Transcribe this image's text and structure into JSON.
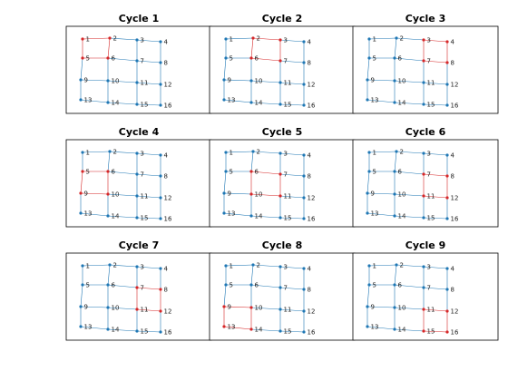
{
  "figure": {
    "node_labels": [
      "1",
      "2",
      "3",
      "4",
      "5",
      "6",
      "7",
      "8",
      "9",
      "10",
      "11",
      "12",
      "13",
      "14",
      "15",
      "16"
    ],
    "edges": [
      [
        1,
        2
      ],
      [
        2,
        3
      ],
      [
        3,
        4
      ],
      [
        5,
        6
      ],
      [
        6,
        7
      ],
      [
        7,
        8
      ],
      [
        9,
        10
      ],
      [
        10,
        11
      ],
      [
        11,
        12
      ],
      [
        13,
        14
      ],
      [
        14,
        15
      ],
      [
        15,
        16
      ],
      [
        1,
        5
      ],
      [
        5,
        9
      ],
      [
        9,
        13
      ],
      [
        2,
        6
      ],
      [
        6,
        10
      ],
      [
        10,
        14
      ],
      [
        3,
        7
      ],
      [
        7,
        11
      ],
      [
        11,
        15
      ],
      [
        4,
        8
      ],
      [
        8,
        12
      ],
      [
        12,
        16
      ]
    ],
    "colors": {
      "default": "#1f77b4",
      "highlight": "#d62728",
      "frame": "#000000"
    },
    "panels": [
      {
        "title": "Cycle 1",
        "cycle": [
          1,
          2,
          6,
          5
        ]
      },
      {
        "title": "Cycle 2",
        "cycle": [
          2,
          3,
          7,
          6
        ]
      },
      {
        "title": "Cycle 3",
        "cycle": [
          3,
          4,
          8,
          7
        ]
      },
      {
        "title": "Cycle 4",
        "cycle": [
          5,
          6,
          10,
          9
        ]
      },
      {
        "title": "Cycle 5",
        "cycle": [
          6,
          7,
          11,
          10
        ]
      },
      {
        "title": "Cycle 6",
        "cycle": [
          7,
          8,
          12,
          11
        ]
      },
      {
        "title": "Cycle 7",
        "cycle": [
          7,
          8,
          12,
          11
        ]
      },
      {
        "title": "Cycle 8",
        "cycle": [
          9,
          10,
          14,
          13
        ]
      },
      {
        "title": "Cycle 9",
        "cycle": [
          11,
          12,
          16,
          15
        ]
      }
    ]
  }
}
